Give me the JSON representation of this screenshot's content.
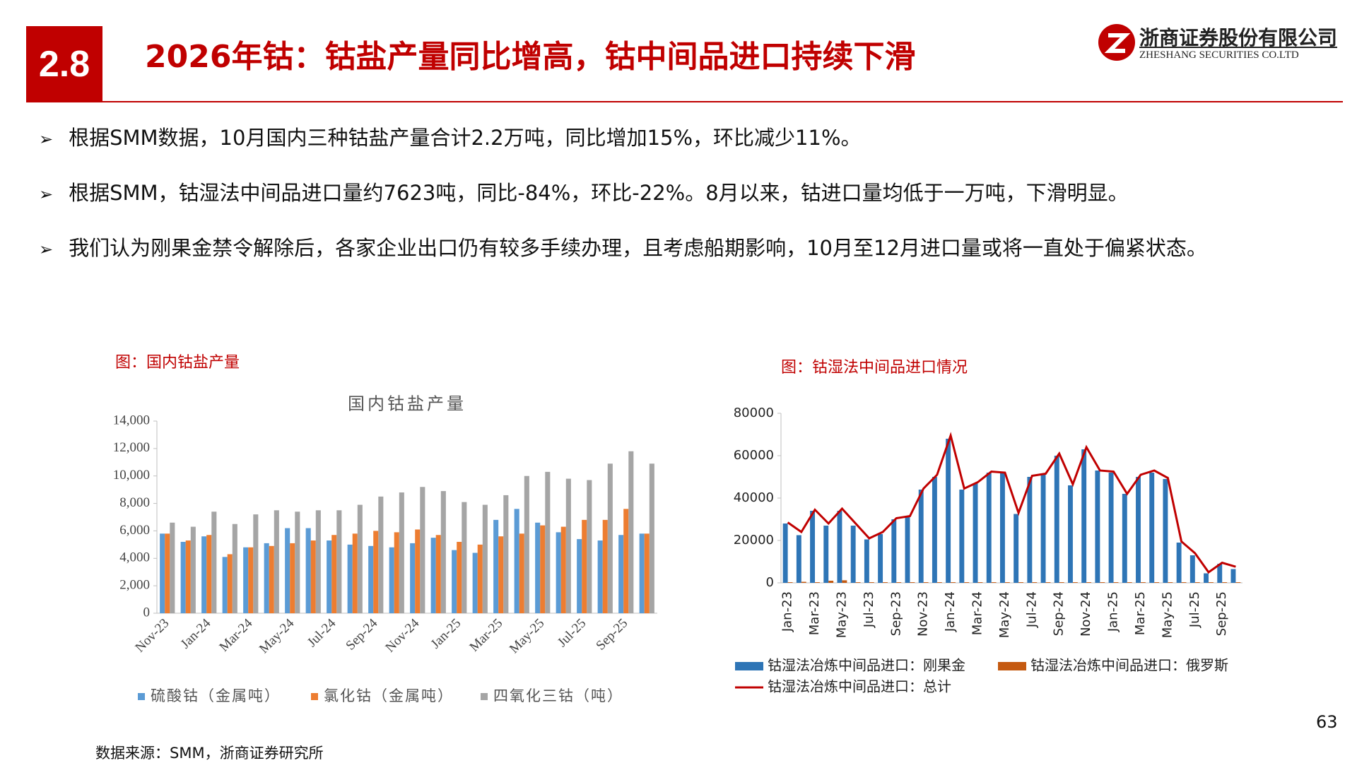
{
  "header": {
    "number": "2.8",
    "title": "2026年钴：钴盐产量同比增高，钴中间品进口持续下滑",
    "logo_cn": "浙商证券股份有限公司",
    "logo_en": "ZHESHANG SECURITIES CO.LTD"
  },
  "bullets": [
    "根据SMM数据，10月国内三种钴盐产量合计2.2万吨，同比增加15%，环比减少11%。",
    "根据SMM，钴湿法中间品进口量约7623吨，同比-84%，环比-22%。8月以来，钴进口量均低于一万吨，下滑明显。",
    "我们认为刚果金禁令解除后，各家企业出口仍有较多手续办理，且考虑船期影响，10月至12月进口量或将一直处于偏紧状态。"
  ],
  "chart_data": [
    {
      "type": "bar",
      "caption": "图：国内钴盐产量",
      "title": "国内钴盐产量",
      "categories": [
        "Nov-23",
        null,
        "Jan-24",
        null,
        "Mar-24",
        null,
        "May-24",
        null,
        "Jul-24",
        null,
        "Sep-24",
        null,
        "Nov-24",
        null,
        "Jan-25",
        null,
        "Mar-25",
        null,
        "May-25",
        null,
        "Jul-25",
        null,
        "Sep-25",
        null
      ],
      "series": [
        {
          "name": "硫酸钴（金属吨）",
          "color": "#5b9bd5",
          "values": [
            5800,
            5200,
            5600,
            4100,
            4800,
            5100,
            6200,
            6200,
            5300,
            5000,
            4900,
            4800,
            5100,
            5500,
            4600,
            4400,
            6800,
            7600,
            6600,
            5900,
            5400,
            5300,
            5700,
            5800
          ]
        },
        {
          "name": "氯化钴（金属吨）",
          "color": "#ed7d31",
          "values": [
            5800,
            5300,
            5700,
            4300,
            4800,
            4900,
            5100,
            5300,
            5700,
            5800,
            6000,
            5900,
            6100,
            5700,
            5200,
            5000,
            5600,
            5800,
            6400,
            6300,
            6800,
            6800,
            7600,
            5800
          ]
        },
        {
          "name": "四氧化三钴（吨）",
          "color": "#a5a5a5",
          "values": [
            6600,
            6300,
            7400,
            6500,
            7200,
            7500,
            7400,
            7500,
            7500,
            7900,
            8500,
            8800,
            9200,
            8900,
            8100,
            7900,
            8600,
            10000,
            10300,
            9800,
            9700,
            10900,
            11800,
            10900
          ]
        }
      ],
      "ylim": [
        0,
        14000
      ],
      "yticks": [
        0,
        {
          "value": 2000,
          "label": "2,000"
        },
        {
          "value": 4000,
          "label": "4,000"
        },
        {
          "value": 6000,
          "label": "6,000"
        },
        {
          "value": 8000,
          "label": "8,000"
        },
        {
          "value": 10000,
          "label": "10,000"
        },
        {
          "value": 12000,
          "label": "12,000"
        },
        {
          "value": 14000,
          "label": "14,000"
        }
      ],
      "grid": false,
      "legend": "bottom"
    },
    {
      "type": "bar",
      "caption": "图：钴湿法中间品进口情况",
      "categories": [
        "Jan-23",
        null,
        "Mar-23",
        null,
        "May-23",
        null,
        "Jul-23",
        null,
        "Sep-23",
        null,
        "Nov-23",
        null,
        "Jan-24",
        null,
        "Mar-24",
        null,
        "May-24",
        null,
        "Jul-24",
        null,
        "Sep-24",
        null,
        "Nov-24",
        null,
        "Jan-25",
        null,
        "Mar-25",
        null,
        "May-25",
        null,
        "Jul-25",
        null,
        "Sep-25",
        null
      ],
      "series": [
        {
          "name": "钴湿法冶炼中间品进口：刚果金",
          "color": "#2e75b6",
          "values": [
            28000,
            22500,
            34000,
            27000,
            34000,
            27000,
            20500,
            23000,
            30000,
            31000,
            44000,
            50000,
            68000,
            44000,
            47000,
            52000,
            52000,
            32500,
            50000,
            51000,
            60000,
            46000,
            63000,
            53000,
            52000,
            42000,
            50000,
            52000,
            49000,
            19000,
            13000,
            4500,
            9000,
            6500
          ]
        },
        {
          "name": "钴湿法冶炼中间品进口：俄罗斯",
          "color": "#c55a11",
          "values": [
            300,
            500,
            300,
            1000,
            1200,
            300,
            300,
            300,
            300,
            300,
            300,
            300,
            300,
            300,
            300,
            300,
            300,
            300,
            300,
            300,
            300,
            300,
            300,
            300,
            300,
            300,
            300,
            300,
            300,
            300,
            300,
            300,
            300,
            300
          ]
        },
        {
          "name": "钴湿法冶炼中间品进口：总计",
          "type": "line",
          "color": "#c00000",
          "values": [
            28500,
            24000,
            34500,
            28000,
            35000,
            28000,
            21000,
            24000,
            30500,
            31500,
            44500,
            51000,
            69500,
            44500,
            47500,
            52500,
            52000,
            33000,
            50500,
            51500,
            61000,
            46500,
            64000,
            53000,
            52500,
            42000,
            51000,
            53000,
            49500,
            19500,
            14000,
            5000,
            9500,
            7600
          ]
        }
      ],
      "ylim": [
        0,
        80000
      ],
      "yticks": [
        0,
        20000,
        40000,
        60000,
        80000
      ],
      "grid": false,
      "legend": "bottom"
    }
  ],
  "source": "数据来源：SMM，浙商证券研究所",
  "page_number": "63"
}
